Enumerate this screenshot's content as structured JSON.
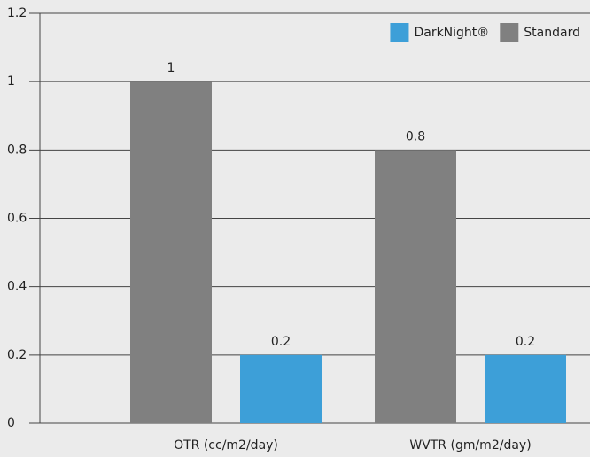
{
  "chart_data": {
    "type": "bar",
    "categories": [
      "OTR (cc/m2/day)",
      "WVTR (gm/m2/day)"
    ],
    "series": [
      {
        "name": "Standard",
        "color": "#808080",
        "values": [
          1,
          0.8
        ]
      },
      {
        "name": "DarkNight®",
        "color": "#3d9fd8",
        "values": [
          0.2,
          0.2
        ]
      }
    ],
    "ylim": [
      0,
      1.2
    ],
    "yticks": [
      0,
      0.2,
      0.4,
      0.6,
      0.8,
      1,
      1.2
    ],
    "grid": true,
    "legend": "top-right"
  }
}
